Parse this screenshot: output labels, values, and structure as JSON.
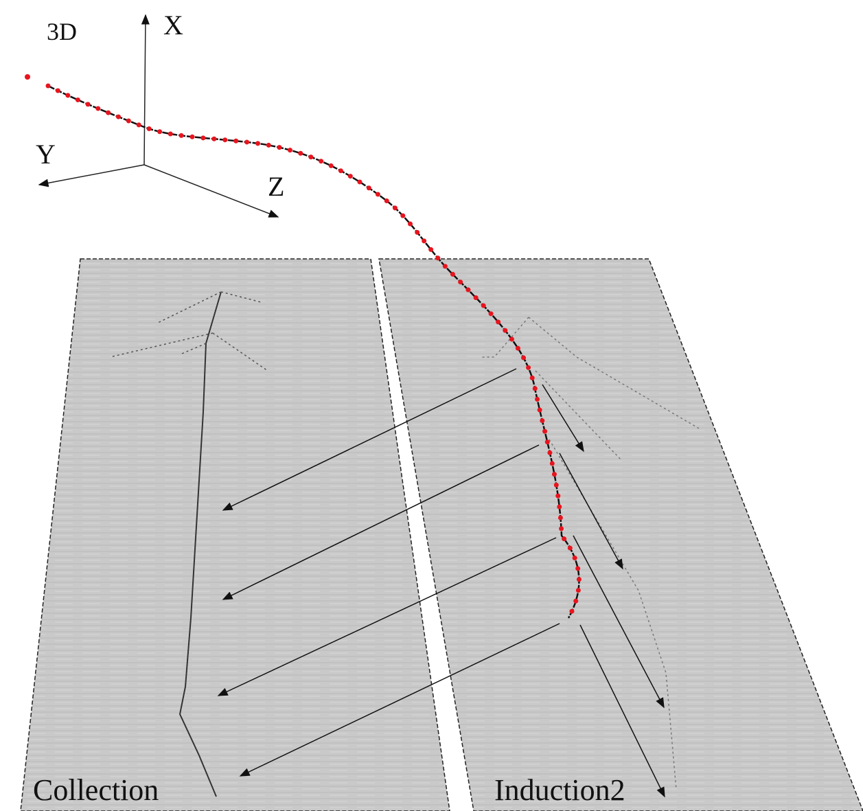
{
  "labels": {
    "view": "3D",
    "x_axis": "X",
    "y_axis": "Y",
    "z_axis": "Z",
    "collection": "Collection",
    "induction": "Induction2"
  }
}
